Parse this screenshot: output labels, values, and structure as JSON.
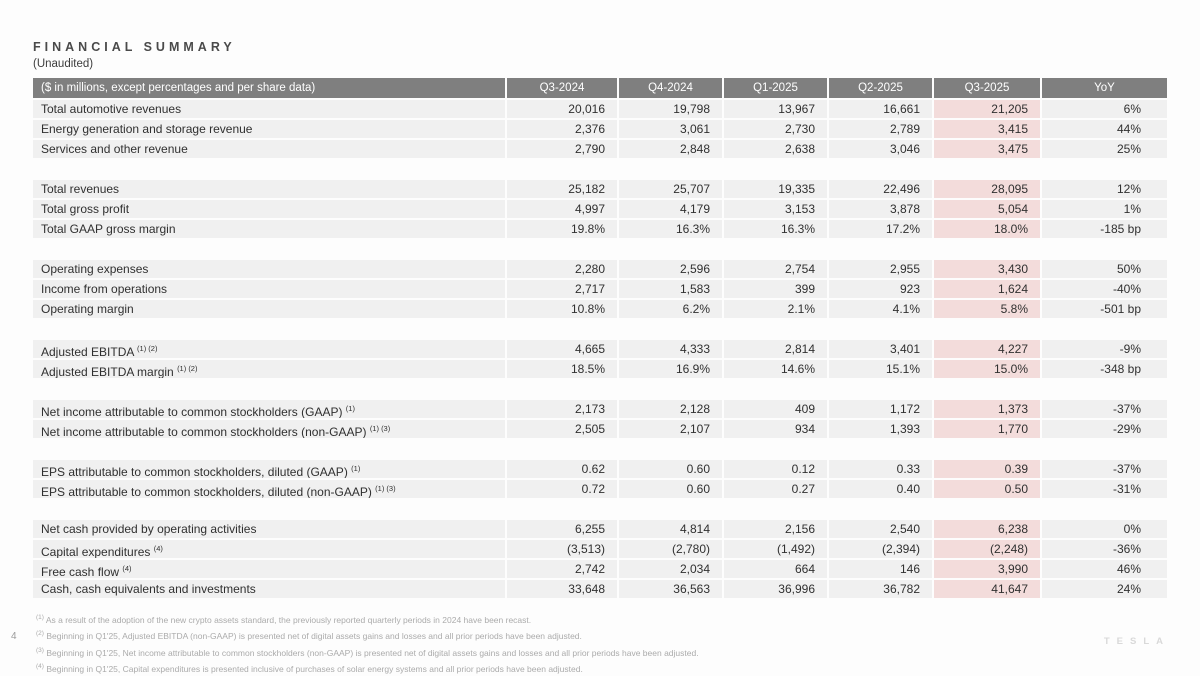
{
  "page": {
    "number": "4",
    "brand": "TESLA"
  },
  "header": {
    "title": "FINANCIAL SUMMARY",
    "subtitle": "(Unaudited)"
  },
  "colors": {
    "header_bg": "#7f7f7f",
    "row_bg": "#f0f0f0",
    "highlight_bg": "#f3dcdb",
    "header_text": "#ffffff",
    "body_text": "#303030",
    "footnote_text": "#ababab"
  },
  "table": {
    "label_header": "($ in millions, except percentages and per share data)",
    "columns": [
      "Q3-2024",
      "Q4-2024",
      "Q1-2025",
      "Q2-2025",
      "Q3-2025",
      "YoY"
    ],
    "highlight_column": "Q3-2025",
    "sections": [
      {
        "rows": [
          {
            "label": "Total automotive revenues",
            "sup": "",
            "values": [
              "20,016",
              "19,798",
              "13,967",
              "16,661",
              "21,205",
              "6%"
            ]
          },
          {
            "label": "Energy generation and storage revenue",
            "sup": "",
            "values": [
              "2,376",
              "3,061",
              "2,730",
              "2,789",
              "3,415",
              "44%"
            ]
          },
          {
            "label": "Services and other revenue",
            "sup": "",
            "values": [
              "2,790",
              "2,848",
              "2,638",
              "3,046",
              "3,475",
              "25%"
            ]
          }
        ]
      },
      {
        "rows": [
          {
            "label": "Total revenues",
            "sup": "",
            "values": [
              "25,182",
              "25,707",
              "19,335",
              "22,496",
              "28,095",
              "12%"
            ]
          },
          {
            "label": "Total gross profit",
            "sup": "",
            "values": [
              "4,997",
              "4,179",
              "3,153",
              "3,878",
              "5,054",
              "1%"
            ]
          },
          {
            "label": "Total GAAP gross margin",
            "sup": "",
            "values": [
              "19.8%",
              "16.3%",
              "16.3%",
              "17.2%",
              "18.0%",
              "-185 bp"
            ]
          }
        ]
      },
      {
        "rows": [
          {
            "label": "Operating expenses",
            "sup": "",
            "values": [
              "2,280",
              "2,596",
              "2,754",
              "2,955",
              "3,430",
              "50%"
            ]
          },
          {
            "label": "Income from operations",
            "sup": "",
            "values": [
              "2,717",
              "1,583",
              "399",
              "923",
              "1,624",
              "-40%"
            ]
          },
          {
            "label": "Operating margin",
            "sup": "",
            "values": [
              "10.8%",
              "6.2%",
              "2.1%",
              "4.1%",
              "5.8%",
              "-501 bp"
            ]
          }
        ]
      },
      {
        "rows": [
          {
            "label": "Adjusted EBITDA ",
            "sup": "(1) (2)",
            "values": [
              "4,665",
              "4,333",
              "2,814",
              "3,401",
              "4,227",
              "-9%"
            ]
          },
          {
            "label": "Adjusted EBITDA margin ",
            "sup": "(1) (2)",
            "values": [
              "18.5%",
              "16.9%",
              "14.6%",
              "15.1%",
              "15.0%",
              "-348 bp"
            ]
          }
        ]
      },
      {
        "rows": [
          {
            "label": "Net income attributable to common stockholders (GAAP) ",
            "sup": "(1)",
            "values": [
              "2,173",
              "2,128",
              "409",
              "1,172",
              "1,373",
              "-37%"
            ]
          },
          {
            "label": "Net income attributable to common stockholders (non-GAAP) ",
            "sup": "(1) (3)",
            "values": [
              "2,505",
              "2,107",
              "934",
              "1,393",
              "1,770",
              "-29%"
            ]
          }
        ]
      },
      {
        "rows": [
          {
            "label": "EPS attributable to common stockholders, diluted (GAAP) ",
            "sup": "(1)",
            "values": [
              "0.62",
              "0.60",
              "0.12",
              "0.33",
              "0.39",
              "-37%"
            ]
          },
          {
            "label": "EPS attributable to common stockholders, diluted (non-GAAP) ",
            "sup": "(1) (3)",
            "values": [
              "0.72",
              "0.60",
              "0.27",
              "0.40",
              "0.50",
              "-31%"
            ]
          }
        ]
      },
      {
        "rows": [
          {
            "label": "Net cash provided by operating activities",
            "sup": "",
            "values": [
              "6,255",
              "4,814",
              "2,156",
              "2,540",
              "6,238",
              "0%"
            ]
          },
          {
            "label": "Capital expenditures ",
            "sup": "(4)",
            "values": [
              "(3,513)",
              "(2,780)",
              "(1,492)",
              "(2,394)",
              "(2,248)",
              "-36%"
            ]
          },
          {
            "label": "Free cash flow ",
            "sup": "(4)",
            "values": [
              "2,742",
              "2,034",
              "664",
              "146",
              "3,990",
              "46%"
            ]
          },
          {
            "label": "Cash, cash equivalents and investments",
            "sup": "",
            "values": [
              "33,648",
              "36,563",
              "36,996",
              "36,782",
              "41,647",
              "24%"
            ]
          }
        ]
      }
    ]
  },
  "footnotes": [
    {
      "sup": "(1)",
      "text": "As a result of the adoption of the new crypto assets standard, the previously reported quarterly periods in 2024 have been recast."
    },
    {
      "sup": "(2)",
      "text": "Beginning in Q1'25, Adjusted EBITDA (non-GAAP) is presented net of digital assets gains and losses and all prior periods have been adjusted."
    },
    {
      "sup": "(3)",
      "text": "Beginning in Q1'25, Net income attributable to common stockholders (non-GAAP) is presented net of digital assets gains and losses and all prior periods have been adjusted."
    },
    {
      "sup": "(4)",
      "text": "Beginning in Q1'25, Capital expenditures is presented inclusive of purchases of solar energy systems and all prior periods have been adjusted."
    }
  ]
}
